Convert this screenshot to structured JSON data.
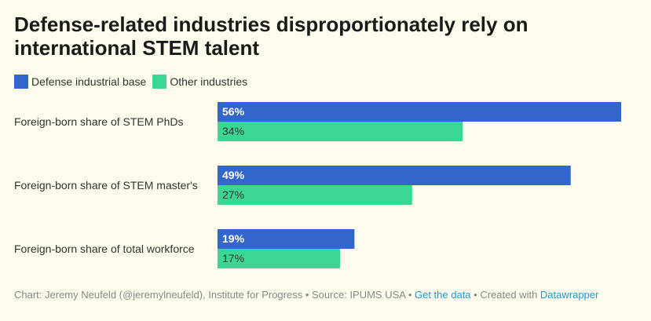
{
  "title": "Defense-related industries disproportionately rely on international STEM talent",
  "legend": [
    {
      "label": "Defense industrial base",
      "color": "#3366cc"
    },
    {
      "label": "Other industries",
      "color": "#3ad694"
    }
  ],
  "chart_data": {
    "type": "bar",
    "orientation": "horizontal",
    "categories": [
      "Foreign-born share of STEM PhDs",
      "Foreign-born share of STEM master's",
      "Foreign-born share of total workforce"
    ],
    "series": [
      {
        "name": "Defense industrial base",
        "values": [
          56,
          49,
          19
        ],
        "labels": [
          "56%",
          "49%",
          "19%"
        ],
        "color": "#3366cc"
      },
      {
        "name": "Other industries",
        "values": [
          34,
          27,
          17
        ],
        "labels": [
          "34%",
          "27%",
          "17%"
        ],
        "color": "#3ad694"
      }
    ],
    "xlim": [
      0,
      56
    ],
    "grid": false,
    "legend_position": "top-left"
  },
  "footer": {
    "prefix": "Chart: Jeremy Neufeld (@jeremylneufeld), Institute for Progress • Source: IPUMS USA • ",
    "data_link": "Get the data",
    "middle": " • Created with ",
    "tool_link": "Datawrapper"
  }
}
